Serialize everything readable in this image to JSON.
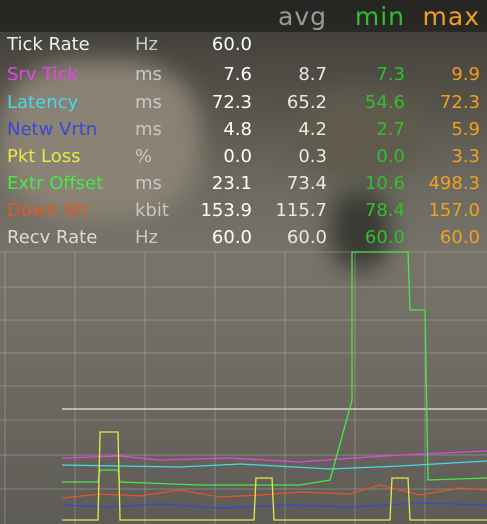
{
  "header": {
    "columns": [
      {
        "label": "avg",
        "color": "#9a9a9a"
      },
      {
        "label": "min",
        "color": "#2fbf2f"
      },
      {
        "label": "max",
        "color": "#f0a020"
      }
    ]
  },
  "rows": [
    {
      "label": "Tick Rate",
      "unit": "Hz",
      "color": "#f0f0f0",
      "current": "60.0"
    },
    {
      "label": "Srv Tick",
      "unit": "ms",
      "color": "#e048e0",
      "current": "7.6",
      "avg": "8.7",
      "min": "7.3",
      "max": "9.9"
    },
    {
      "label": "Latency",
      "unit": "ms",
      "color": "#48d8e8",
      "current": "72.3",
      "avg": "65.2",
      "min": "54.6",
      "max": "72.3"
    },
    {
      "label": "Netw Vrtn",
      "unit": "ms",
      "color": "#3a48d0",
      "current": "4.8",
      "avg": "4.2",
      "min": "2.7",
      "max": "5.9"
    },
    {
      "label": "Pkt Loss",
      "unit": "%",
      "color": "#e8e848",
      "current": "0.0",
      "avg": "0.3",
      "min": "0.0",
      "max": "3.3"
    },
    {
      "label": "Extr Offset",
      "unit": "ms",
      "color": "#48e848",
      "current": "23.1",
      "avg": "73.4",
      "min": "10.6",
      "max": "498.3"
    },
    {
      "label": "Down Str",
      "unit": "kbit",
      "color": "#e05828",
      "current": "153.9",
      "avg": "115.7",
      "min": "78.4",
      "max": "157.0"
    },
    {
      "label": "Recv Rate",
      "unit": "Hz",
      "color": "#dcdcdc",
      "current": "60.0",
      "avg": "60.0",
      "min": "60.0",
      "max": "60.0"
    }
  ]
}
